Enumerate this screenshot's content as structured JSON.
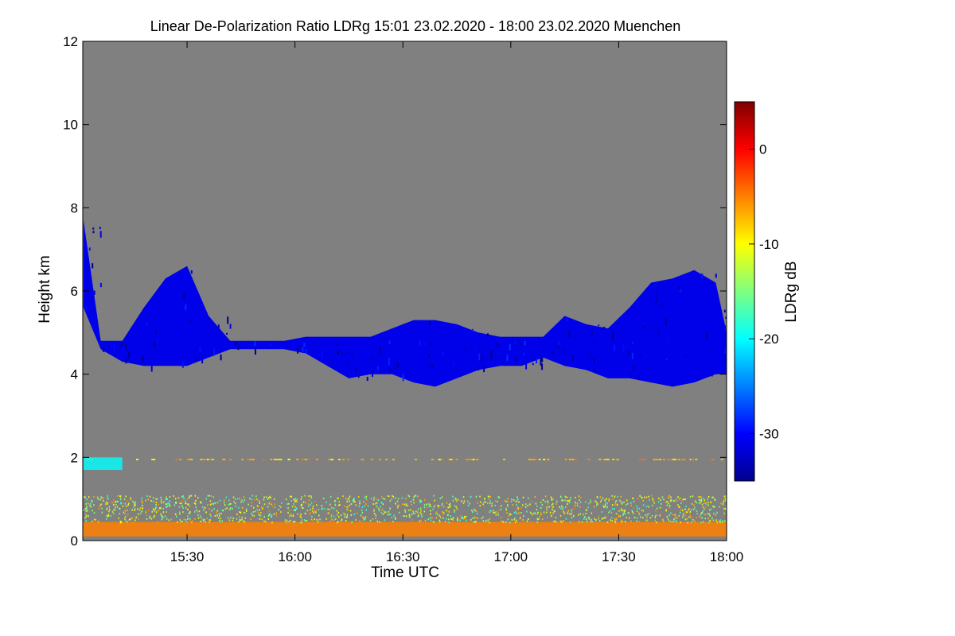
{
  "chart_data": {
    "type": "heatmap",
    "title": "Linear De-Polarization Ratio LDRg   15:01 23.02.2020 - 18:00 23.02.2020 Muenchen",
    "xlabel": "Time UTC",
    "ylabel": "Height km",
    "colorbar_label": "LDRg dB",
    "x_range_hours": [
      15.0167,
      18.0
    ],
    "y_range_km": [
      0,
      12
    ],
    "x_ticks": [
      {
        "value": 15.5,
        "label": "15:30"
      },
      {
        "value": 16.0,
        "label": "16:00"
      },
      {
        "value": 16.5,
        "label": "16:30"
      },
      {
        "value": 17.0,
        "label": "17:00"
      },
      {
        "value": 17.5,
        "label": "17:30"
      },
      {
        "value": 18.0,
        "label": "18:00"
      }
    ],
    "y_ticks": [
      {
        "value": 0,
        "label": "0"
      },
      {
        "value": 2,
        "label": "2"
      },
      {
        "value": 4,
        "label": "4"
      },
      {
        "value": 6,
        "label": "6"
      },
      {
        "value": 8,
        "label": "8"
      },
      {
        "value": 10,
        "label": "10"
      },
      {
        "value": 12,
        "label": "12"
      }
    ],
    "colorbar_range_db": [
      -35,
      5
    ],
    "colorbar_ticks": [
      {
        "value": 0,
        "label": "0"
      },
      {
        "value": -10,
        "label": "-10"
      },
      {
        "value": -20,
        "label": "-20"
      },
      {
        "value": -30,
        "label": "-30"
      }
    ],
    "background_color": "#808080",
    "colormap": [
      "#00008f",
      "#0000ff",
      "#0080ff",
      "#00ffff",
      "#80ff80",
      "#ffff00",
      "#ff8000",
      "#ff0000",
      "#800000"
    ],
    "cloud_layer": {
      "ldr_db": -31,
      "columns": [
        {
          "t": 15.02,
          "bottom": 5.6,
          "top": 7.7
        },
        {
          "t": 15.1,
          "bottom": 4.6,
          "top": 4.8
        },
        {
          "t": 15.2,
          "bottom": 4.3,
          "top": 4.8
        },
        {
          "t": 15.3,
          "bottom": 4.2,
          "top": 5.6
        },
        {
          "t": 15.4,
          "bottom": 4.2,
          "top": 6.3
        },
        {
          "t": 15.5,
          "bottom": 4.2,
          "top": 6.6
        },
        {
          "t": 15.6,
          "bottom": 4.4,
          "top": 5.4
        },
        {
          "t": 15.7,
          "bottom": 4.6,
          "top": 4.8
        },
        {
          "t": 15.95,
          "bottom": 4.6,
          "top": 4.8
        },
        {
          "t": 16.05,
          "bottom": 4.5,
          "top": 4.9
        },
        {
          "t": 16.15,
          "bottom": 4.2,
          "top": 4.9
        },
        {
          "t": 16.25,
          "bottom": 3.9,
          "top": 4.9
        },
        {
          "t": 16.35,
          "bottom": 4.0,
          "top": 4.9
        },
        {
          "t": 16.45,
          "bottom": 4.0,
          "top": 5.1
        },
        {
          "t": 16.55,
          "bottom": 3.8,
          "top": 5.3
        },
        {
          "t": 16.65,
          "bottom": 3.7,
          "top": 5.3
        },
        {
          "t": 16.75,
          "bottom": 3.9,
          "top": 5.2
        },
        {
          "t": 16.85,
          "bottom": 4.1,
          "top": 5.0
        },
        {
          "t": 16.95,
          "bottom": 4.2,
          "top": 4.9
        },
        {
          "t": 17.05,
          "bottom": 4.2,
          "top": 4.9
        },
        {
          "t": 17.15,
          "bottom": 4.4,
          "top": 4.9
        },
        {
          "t": 17.25,
          "bottom": 4.2,
          "top": 5.4
        },
        {
          "t": 17.35,
          "bottom": 4.1,
          "top": 5.2
        },
        {
          "t": 17.45,
          "bottom": 3.9,
          "top": 5.1
        },
        {
          "t": 17.55,
          "bottom": 3.9,
          "top": 5.6
        },
        {
          "t": 17.65,
          "bottom": 3.8,
          "top": 6.2
        },
        {
          "t": 17.75,
          "bottom": 3.7,
          "top": 6.3
        },
        {
          "t": 17.85,
          "bottom": 3.8,
          "top": 6.5
        },
        {
          "t": 17.95,
          "bottom": 4.0,
          "top": 6.2
        },
        {
          "t": 18.0,
          "bottom": 4.0,
          "top": 5.0
        }
      ]
    },
    "near_surface_layer": {
      "ldr_db": -5,
      "bottom": 0.1,
      "top": 0.45
    },
    "low_level_aerosol": {
      "ldr_db": -12,
      "bottom": 0.45,
      "top": 1.1
    },
    "residual_layer": {
      "ldr_db": -7,
      "height": 1.95
    },
    "cyan_patch": {
      "ldr_db": -20,
      "t_start": 15.02,
      "t_end": 15.2,
      "bottom": 1.7,
      "top": 2.0
    }
  }
}
